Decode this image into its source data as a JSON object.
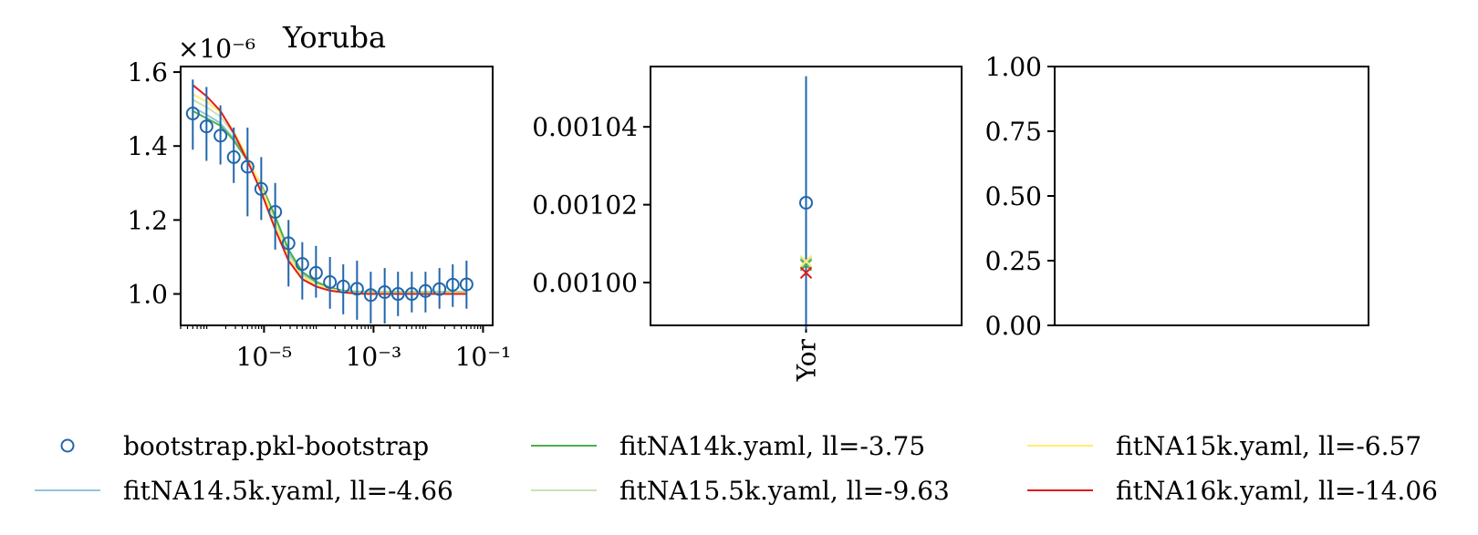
{
  "chart_data": [
    {
      "type": "scatter",
      "title": "Yoruba",
      "offset_text": "×10⁻⁶",
      "x_scale": "log",
      "xlim": [
        3e-07,
        0.15
      ],
      "ylim": [
        0.915,
        1.615
      ],
      "x_ticks": [
        {
          "value": 1e-05,
          "label": "10⁻⁵"
        },
        {
          "value": 0.001,
          "label": "10⁻³"
        },
        {
          "value": 0.1,
          "label": "10⁻¹"
        }
      ],
      "y_ticks": [
        {
          "value": 1.0,
          "label": "1.0"
        },
        {
          "value": 1.2,
          "label": "1.2"
        },
        {
          "value": 1.4,
          "label": "1.4"
        },
        {
          "value": 1.6,
          "label": "1.6"
        }
      ],
      "x": [
        5e-07,
        8.9e-07,
        1.6e-06,
        2.8e-06,
        5e-06,
        8.9e-06,
        1.6e-05,
        2.8e-05,
        5e-05,
        8.9e-05,
        0.00016,
        0.00028,
        0.0005,
        0.00089,
        0.0016,
        0.0028,
        0.005,
        0.0089,
        0.016,
        0.028,
        0.05
      ],
      "series": [
        {
          "name": "bootstrap.pkl-bootstrap",
          "style": "points-errorbar",
          "color": "#2166ac",
          "values": [
            1.488,
            1.453,
            1.428,
            1.37,
            1.344,
            1.284,
            1.222,
            1.137,
            1.081,
            1.057,
            1.032,
            1.02,
            1.014,
            0.997,
            1.005,
            1.0,
            1.0,
            1.008,
            1.013,
            1.025,
            1.026
          ],
          "err_low": [
            1.39,
            1.36,
            1.35,
            1.3,
            1.21,
            1.2,
            1.12,
            1.02,
            0.985,
            0.99,
            0.96,
            0.945,
            0.93,
            0.92,
            0.92,
            0.94,
            0.95,
            0.95,
            0.96,
            0.965,
            0.96
          ],
          "err_high": [
            1.58,
            1.56,
            1.51,
            1.45,
            1.45,
            1.37,
            1.3,
            1.2,
            1.14,
            1.13,
            1.1,
            1.08,
            1.09,
            1.06,
            1.07,
            1.06,
            1.06,
            1.06,
            1.07,
            1.08,
            1.09
          ]
        },
        {
          "name": "fitNA14.5k.yaml, ll=-4.66",
          "style": "line",
          "color": "#92c5de",
          "values": [
            1.505,
            1.485,
            1.462,
            1.42,
            1.36,
            1.29,
            1.2,
            1.11,
            1.055,
            1.03,
            1.015,
            1.008,
            1.005,
            1.004,
            1.004,
            1.004,
            1.004,
            1.004,
            1.004,
            1.004,
            1.004
          ]
        },
        {
          "name": "fitNA14k.yaml, ll=-3.75",
          "style": "line",
          "color": "#4daf4a",
          "values": [
            1.495,
            1.475,
            1.455,
            1.415,
            1.36,
            1.295,
            1.21,
            1.12,
            1.06,
            1.033,
            1.017,
            1.009,
            1.006,
            1.005,
            1.005,
            1.005,
            1.005,
            1.005,
            1.005,
            1.005,
            1.005
          ]
        },
        {
          "name": "fitNA15.5k.yaml, ll=-9.63",
          "style": "line",
          "color": "#c7e3b5",
          "values": [
            1.525,
            1.505,
            1.48,
            1.432,
            1.365,
            1.29,
            1.195,
            1.105,
            1.05,
            1.027,
            1.013,
            1.007,
            1.004,
            1.003,
            1.003,
            1.003,
            1.003,
            1.003,
            1.003,
            1.003,
            1.003
          ]
        },
        {
          "name": "fitNA15k.yaml, ll=-6.57",
          "style": "line",
          "color": "#ffed6f",
          "values": [
            1.54,
            1.52,
            1.492,
            1.44,
            1.37,
            1.29,
            1.19,
            1.1,
            1.047,
            1.025,
            1.012,
            1.006,
            1.003,
            1.002,
            1.002,
            1.002,
            1.002,
            1.002,
            1.002,
            1.002,
            1.002
          ]
        },
        {
          "name": "fitNA16k.yaml, ll=-14.06",
          "style": "line",
          "color": "#e31a1c",
          "values": [
            1.565,
            1.535,
            1.495,
            1.435,
            1.36,
            1.275,
            1.175,
            1.09,
            1.04,
            1.02,
            1.009,
            1.004,
            1.001,
            1.0,
            1.0,
            1.0,
            1.0,
            1.0,
            1.0,
            1.0,
            1.0
          ]
        }
      ]
    },
    {
      "type": "scatter",
      "categories": [
        "Yor"
      ],
      "ylim": [
        0.000989,
        0.0010555
      ],
      "y_ticks": [
        {
          "value": 0.001,
          "label": "0.00100"
        },
        {
          "value": 0.00102,
          "label": "0.00102"
        },
        {
          "value": 0.00104,
          "label": "0.00104"
        }
      ],
      "observed": {
        "value": 0.0010205,
        "err_low": 0.000988,
        "err_high": 0.001053,
        "color": "#2166ac"
      },
      "models": [
        {
          "value": 0.001005,
          "color": "#92c5de"
        },
        {
          "value": 0.0010045,
          "color": "#4daf4a"
        },
        {
          "value": 0.0010055,
          "color": "#c7e3b5"
        },
        {
          "value": 0.0010055,
          "color": "#ffed6f"
        },
        {
          "value": 0.0010025,
          "color": "#e31a1c"
        }
      ]
    },
    {
      "type": "scatter",
      "ylim": [
        0.0,
        1.0
      ],
      "y_ticks": [
        {
          "value": 0.0,
          "label": "0.00"
        },
        {
          "value": 0.25,
          "label": "0.25"
        },
        {
          "value": 0.5,
          "label": "0.50"
        },
        {
          "value": 0.75,
          "label": "0.75"
        },
        {
          "value": 1.0,
          "label": "1.00"
        }
      ]
    }
  ],
  "legend": {
    "placement": "bottom",
    "entries": [
      {
        "label": "bootstrap.pkl-bootstrap",
        "marker": "circle",
        "color": "#2166ac"
      },
      {
        "label": "fitNA14.5k.yaml, ll=-4.66",
        "marker": "line",
        "color": "#92c5de"
      },
      {
        "label": "fitNA14k.yaml, ll=-3.75",
        "marker": "line",
        "color": "#4daf4a"
      },
      {
        "label": "fitNA15.5k.yaml, ll=-9.63",
        "marker": "line",
        "color": "#c7e3b5"
      },
      {
        "label": "fitNA15k.yaml, ll=-6.57",
        "marker": "line",
        "color": "#ffed6f"
      },
      {
        "label": "fitNA16k.yaml, ll=-14.06",
        "marker": "line",
        "color": "#e31a1c"
      }
    ]
  }
}
